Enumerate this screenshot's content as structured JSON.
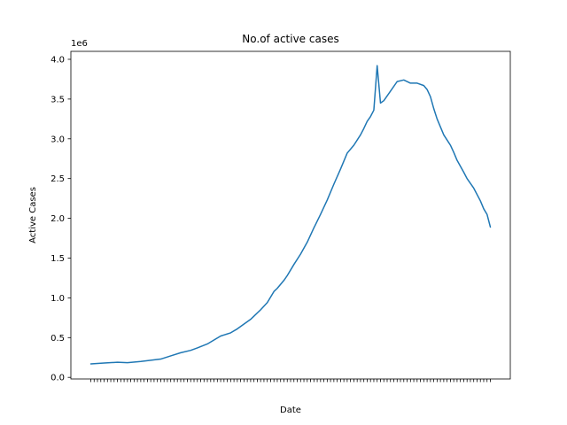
{
  "chart_data": {
    "type": "line",
    "title": "No.of active cases",
    "xlabel": "Date",
    "ylabel": "Active Cases",
    "y_scale_note": "1e6",
    "ylim": [
      -0.02,
      4.1
    ],
    "yticks": [
      0.0,
      0.5,
      1.0,
      1.5,
      2.0,
      2.5,
      3.0,
      3.5,
      4.0
    ],
    "ytick_labels": [
      "0.0",
      "0.5",
      "1.0",
      "1.5",
      "2.0",
      "2.5",
      "3.0",
      "3.5",
      "4.0"
    ],
    "grid": false,
    "legend": "none",
    "line_color": "#1f77b4",
    "x_index_range": [
      0,
      120
    ],
    "series": [
      {
        "x": [
          0,
          4,
          8,
          11,
          15,
          18,
          21,
          24,
          27,
          30,
          32,
          35,
          37,
          39,
          42,
          44,
          46,
          48,
          49,
          51,
          53,
          54,
          55,
          56,
          58,
          59,
          61,
          63,
          65,
          67,
          69,
          71,
          73,
          75,
          77,
          79,
          81,
          82,
          83,
          84,
          85,
          86,
          87,
          88,
          90,
          92,
          94,
          96,
          98,
          100,
          101,
          102,
          103,
          104,
          105,
          106,
          108,
          109,
          110,
          112,
          113,
          115,
          117,
          118,
          119,
          120
        ],
        "y": [
          0.17,
          0.18,
          0.19,
          0.185,
          0.2,
          0.215,
          0.23,
          0.27,
          0.31,
          0.34,
          0.37,
          0.42,
          0.47,
          0.52,
          0.56,
          0.61,
          0.67,
          0.73,
          0.77,
          0.85,
          0.94,
          1.01,
          1.08,
          1.12,
          1.22,
          1.28,
          1.42,
          1.55,
          1.7,
          1.88,
          2.05,
          2.23,
          2.43,
          2.62,
          2.82,
          2.92,
          3.05,
          3.13,
          3.22,
          3.28,
          3.36,
          3.92,
          3.45,
          3.48,
          3.6,
          3.72,
          3.74,
          3.7,
          3.7,
          3.67,
          3.62,
          3.53,
          3.38,
          3.25,
          3.15,
          3.05,
          2.92,
          2.83,
          2.73,
          2.58,
          2.5,
          2.38,
          2.22,
          2.12,
          2.05,
          1.89
        ]
      }
    ]
  }
}
